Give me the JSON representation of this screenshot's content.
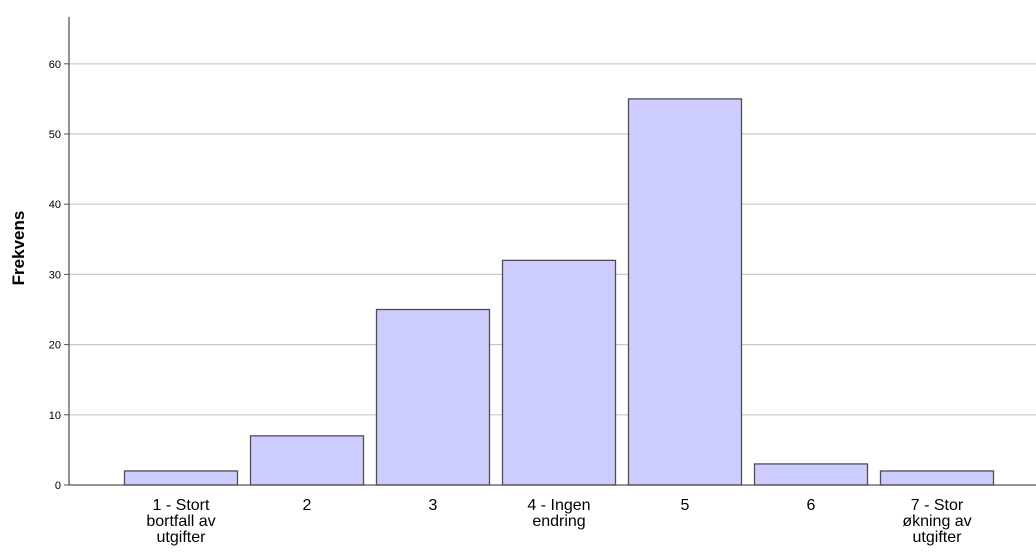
{
  "chart_data": {
    "type": "bar",
    "categories": [
      [
        "1 - Stort",
        "bortfall av",
        "utgifter"
      ],
      [
        "2"
      ],
      [
        "3"
      ],
      [
        "4 - Ingen",
        "endring"
      ],
      [
        "5"
      ],
      [
        "6"
      ],
      [
        "7 - Stor",
        "økning av",
        "utgifter"
      ]
    ],
    "values": [
      2,
      7,
      25,
      32,
      55,
      3,
      2
    ],
    "ylabel": "Frekvens",
    "xlabel": "",
    "ylim": [
      0,
      67
    ],
    "yticks": [
      0,
      10,
      20,
      30,
      40,
      50,
      60
    ],
    "grid": true,
    "colors": {
      "bar_fill": "#ccccff",
      "bar_stroke": "#4d4d4d",
      "grid": "#c8c8c8",
      "axis": "#555555"
    }
  }
}
